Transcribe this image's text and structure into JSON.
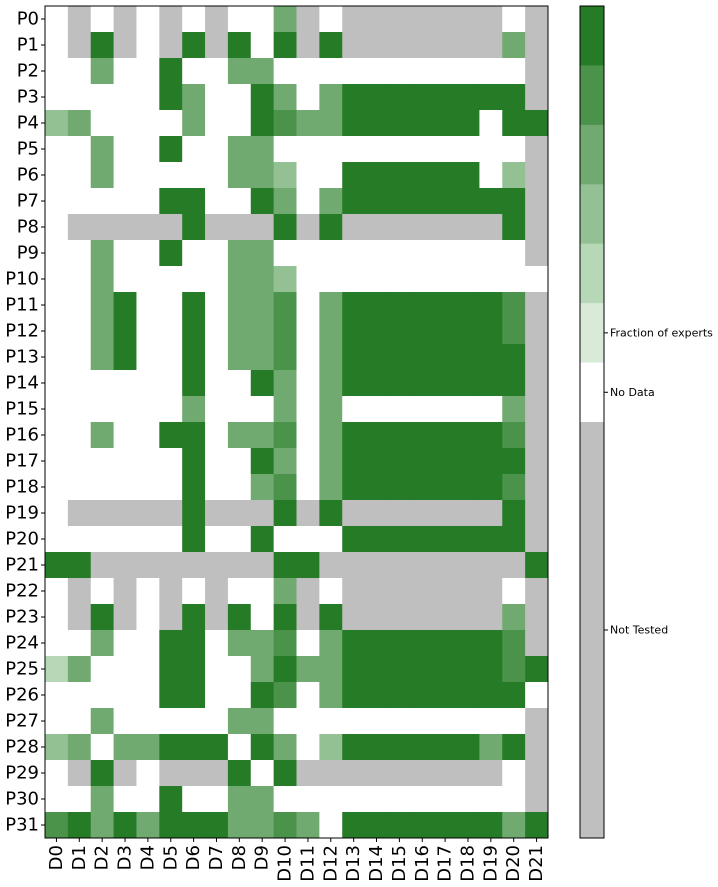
{
  "chart_data": {
    "type": "heatmap",
    "title": "",
    "xlabel": "",
    "ylabel": "",
    "rows": [
      "P0",
      "P1",
      "P2",
      "P3",
      "P4",
      "P5",
      "P6",
      "P7",
      "P8",
      "P9",
      "P10",
      "P11",
      "P12",
      "P13",
      "P14",
      "P15",
      "P16",
      "P17",
      "P18",
      "P19",
      "P20",
      "P21",
      "P22",
      "P23",
      "P24",
      "P25",
      "P26",
      "P27",
      "P28",
      "P29",
      "P30",
      "P31"
    ],
    "columns": [
      "D0",
      "D1",
      "D2",
      "D3",
      "D4",
      "D5",
      "D6",
      "D7",
      "D8",
      "D9",
      "D10",
      "D11",
      "D12",
      "D13",
      "D14",
      "D15",
      "D16",
      "D17",
      "D18",
      "D19",
      "D20",
      "D21"
    ],
    "cell_encoding": {
      "G": "Not Tested",
      "W": "No Data",
      "0..6": "Fraction of experts level (0 = lightest, 6 = darkest green)"
    },
    "grid": [
      [
        "W",
        "G",
        "W",
        "G",
        "W",
        "G",
        "W",
        "G",
        "W",
        "W",
        "3",
        "G",
        "W",
        "G",
        "G",
        "G",
        "G",
        "G",
        "G",
        "G",
        "W",
        "G"
      ],
      [
        "W",
        "G",
        "6",
        "G",
        "W",
        "G",
        "6",
        "G",
        "6",
        "W",
        "6",
        "G",
        "6",
        "G",
        "G",
        "G",
        "G",
        "G",
        "G",
        "G",
        "3",
        "G"
      ],
      [
        "W",
        "W",
        "3",
        "W",
        "W",
        "6",
        "W",
        "W",
        "3",
        "3",
        "W",
        "W",
        "W",
        "W",
        "W",
        "W",
        "W",
        "W",
        "W",
        "W",
        "W",
        "G"
      ],
      [
        "W",
        "W",
        "W",
        "W",
        "W",
        "6",
        "3",
        "W",
        "W",
        "6",
        "3",
        "W",
        "3",
        "6",
        "6",
        "6",
        "6",
        "6",
        "6",
        "6",
        "6",
        "G"
      ],
      [
        "2",
        "3",
        "W",
        "W",
        "W",
        "W",
        "3",
        "W",
        "W",
        "6",
        "4",
        "3",
        "3",
        "6",
        "6",
        "6",
        "6",
        "6",
        "6",
        "W",
        "6",
        "6"
      ],
      [
        "W",
        "W",
        "3",
        "W",
        "W",
        "6",
        "W",
        "W",
        "3",
        "3",
        "W",
        "W",
        "W",
        "W",
        "W",
        "W",
        "W",
        "W",
        "W",
        "W",
        "W",
        "G"
      ],
      [
        "W",
        "W",
        "3",
        "W",
        "W",
        "W",
        "W",
        "W",
        "3",
        "3",
        "2",
        "W",
        "W",
        "6",
        "6",
        "6",
        "6",
        "6",
        "6",
        "W",
        "2",
        "G"
      ],
      [
        "W",
        "W",
        "W",
        "W",
        "W",
        "6",
        "6",
        "W",
        "W",
        "6",
        "3",
        "W",
        "3",
        "6",
        "6",
        "6",
        "6",
        "6",
        "6",
        "6",
        "6",
        "G"
      ],
      [
        "W",
        "G",
        "G",
        "G",
        "G",
        "G",
        "6",
        "G",
        "G",
        "G",
        "6",
        "G",
        "6",
        "G",
        "G",
        "G",
        "G",
        "G",
        "G",
        "G",
        "6",
        "G"
      ],
      [
        "W",
        "W",
        "3",
        "W",
        "W",
        "6",
        "W",
        "W",
        "3",
        "3",
        "W",
        "W",
        "W",
        "W",
        "W",
        "W",
        "W",
        "W",
        "W",
        "W",
        "W",
        "G"
      ],
      [
        "W",
        "W",
        "3",
        "W",
        "W",
        "W",
        "W",
        "W",
        "3",
        "3",
        "2",
        "W",
        "W",
        "W",
        "W",
        "W",
        "W",
        "W",
        "W",
        "W",
        "W",
        "W"
      ],
      [
        "W",
        "W",
        "3",
        "6",
        "W",
        "W",
        "6",
        "W",
        "3",
        "3",
        "4",
        "W",
        "3",
        "6",
        "6",
        "6",
        "6",
        "6",
        "6",
        "6",
        "4",
        "G"
      ],
      [
        "W",
        "W",
        "3",
        "6",
        "W",
        "W",
        "6",
        "W",
        "3",
        "3",
        "4",
        "W",
        "3",
        "6",
        "6",
        "6",
        "6",
        "6",
        "6",
        "6",
        "4",
        "G"
      ],
      [
        "W",
        "W",
        "3",
        "6",
        "W",
        "W",
        "6",
        "W",
        "3",
        "3",
        "4",
        "W",
        "3",
        "6",
        "6",
        "6",
        "6",
        "6",
        "6",
        "6",
        "6",
        "G"
      ],
      [
        "W",
        "W",
        "W",
        "W",
        "W",
        "W",
        "6",
        "W",
        "W",
        "6",
        "3",
        "W",
        "3",
        "6",
        "6",
        "6",
        "6",
        "6",
        "6",
        "6",
        "6",
        "G"
      ],
      [
        "W",
        "W",
        "W",
        "W",
        "W",
        "W",
        "3",
        "W",
        "W",
        "W",
        "3",
        "W",
        "3",
        "W",
        "W",
        "W",
        "W",
        "W",
        "W",
        "W",
        "3",
        "G"
      ],
      [
        "W",
        "W",
        "3",
        "W",
        "W",
        "6",
        "6",
        "W",
        "3",
        "3",
        "4",
        "W",
        "3",
        "6",
        "6",
        "6",
        "6",
        "6",
        "6",
        "6",
        "4",
        "G"
      ],
      [
        "W",
        "W",
        "W",
        "W",
        "W",
        "W",
        "6",
        "W",
        "W",
        "6",
        "3",
        "W",
        "3",
        "6",
        "6",
        "6",
        "6",
        "6",
        "6",
        "6",
        "6",
        "G"
      ],
      [
        "W",
        "W",
        "W",
        "W",
        "W",
        "W",
        "6",
        "W",
        "W",
        "3",
        "4",
        "W",
        "3",
        "6",
        "6",
        "6",
        "6",
        "6",
        "6",
        "6",
        "4",
        "G"
      ],
      [
        "W",
        "G",
        "G",
        "G",
        "G",
        "G",
        "6",
        "G",
        "G",
        "G",
        "6",
        "G",
        "6",
        "G",
        "G",
        "G",
        "G",
        "G",
        "G",
        "G",
        "6",
        "G"
      ],
      [
        "W",
        "W",
        "W",
        "W",
        "W",
        "W",
        "6",
        "W",
        "W",
        "6",
        "W",
        "W",
        "W",
        "6",
        "6",
        "6",
        "6",
        "6",
        "6",
        "6",
        "6",
        "G"
      ],
      [
        "6",
        "6",
        "G",
        "G",
        "G",
        "G",
        "G",
        "G",
        "G",
        "G",
        "6",
        "6",
        "G",
        "G",
        "G",
        "G",
        "G",
        "G",
        "G",
        "G",
        "G",
        "6"
      ],
      [
        "W",
        "G",
        "W",
        "G",
        "W",
        "G",
        "W",
        "G",
        "W",
        "W",
        "3",
        "G",
        "W",
        "G",
        "G",
        "G",
        "G",
        "G",
        "G",
        "G",
        "W",
        "G"
      ],
      [
        "W",
        "G",
        "6",
        "G",
        "W",
        "G",
        "6",
        "G",
        "6",
        "W",
        "6",
        "G",
        "6",
        "G",
        "G",
        "G",
        "G",
        "G",
        "G",
        "G",
        "3",
        "G"
      ],
      [
        "W",
        "W",
        "3",
        "W",
        "W",
        "6",
        "6",
        "W",
        "3",
        "3",
        "4",
        "W",
        "3",
        "6",
        "6",
        "6",
        "6",
        "6",
        "6",
        "6",
        "4",
        "G"
      ],
      [
        "1",
        "3",
        "W",
        "W",
        "W",
        "6",
        "6",
        "W",
        "W",
        "3",
        "5",
        "3",
        "3",
        "6",
        "6",
        "6",
        "6",
        "6",
        "6",
        "6",
        "4",
        "6"
      ],
      [
        "W",
        "W",
        "W",
        "W",
        "W",
        "6",
        "6",
        "W",
        "W",
        "6",
        "4",
        "W",
        "3",
        "6",
        "6",
        "6",
        "6",
        "6",
        "6",
        "6",
        "6",
        "W"
      ],
      [
        "W",
        "W",
        "3",
        "W",
        "W",
        "W",
        "W",
        "W",
        "3",
        "3",
        "W",
        "W",
        "W",
        "W",
        "W",
        "W",
        "W",
        "W",
        "W",
        "W",
        "W",
        "G"
      ],
      [
        "2",
        "3",
        "W",
        "3",
        "3",
        "6",
        "6",
        "6",
        "W",
        "6",
        "3",
        "W",
        "2",
        "6",
        "6",
        "6",
        "6",
        "6",
        "6",
        "3",
        "6",
        "G"
      ],
      [
        "W",
        "G",
        "6",
        "G",
        "W",
        "G",
        "G",
        "G",
        "6",
        "W",
        "6",
        "G",
        "G",
        "G",
        "G",
        "G",
        "G",
        "G",
        "G",
        "G",
        "W",
        "G"
      ],
      [
        "W",
        "W",
        "3",
        "W",
        "W",
        "6",
        "W",
        "W",
        "3",
        "3",
        "W",
        "W",
        "W",
        "W",
        "W",
        "W",
        "W",
        "W",
        "W",
        "W",
        "W",
        "G"
      ],
      [
        "4",
        "6",
        "3",
        "6",
        "3",
        "6",
        "6",
        "6",
        "3",
        "3",
        "4",
        "3",
        "W",
        "6",
        "6",
        "6",
        "6",
        "6",
        "6",
        "6",
        "3",
        "6"
      ]
    ],
    "palette": {
      "not_tested": "#bfbfbf",
      "no_data": "#ffffff",
      "fraction_levels": [
        "#d9ead9",
        "#b7d8b7",
        "#94c194",
        "#70aa70",
        "#4b924b",
        "#267b26",
        "#267b26"
      ]
    },
    "colorbar": {
      "labels": [
        "Fraction of experts",
        "No Data",
        "Not Tested"
      ],
      "bands_top_to_bottom": [
        "#267b26",
        "#4b924b",
        "#70aa70",
        "#94c194",
        "#b7d8b7",
        "#d9ead9",
        "#ffffff",
        "#bfbfbf"
      ]
    }
  }
}
